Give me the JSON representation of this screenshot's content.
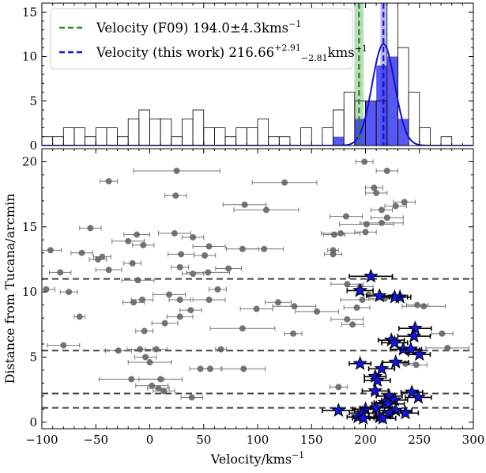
{
  "chart_data": [
    {
      "type": "bar",
      "panel": "top",
      "xlim": [
        -100,
        300
      ],
      "ylim": [
        0,
        16
      ],
      "yticks": [
        0,
        5,
        10,
        15
      ],
      "bin_width": 10,
      "all_bins_left": [
        -100,
        -90,
        -80,
        -70,
        -60,
        -50,
        -40,
        -30,
        -20,
        -10,
        0,
        10,
        20,
        30,
        40,
        50,
        60,
        70,
        80,
        90,
        100,
        110,
        120,
        130,
        140,
        150,
        160,
        170,
        180,
        190,
        200,
        210,
        220,
        230,
        240,
        250,
        260,
        270
      ],
      "all_counts": [
        1,
        1,
        2,
        2,
        1,
        2,
        2,
        1,
        3,
        4,
        3,
        3,
        1,
        3,
        4,
        2,
        2,
        1,
        2,
        2,
        3,
        1,
        1,
        0,
        2,
        0,
        2,
        4,
        6,
        5,
        5,
        5,
        16,
        11,
        6,
        2,
        0,
        1
      ],
      "member_bins_left": [
        170,
        190,
        200,
        210,
        220,
        230
      ],
      "member_counts": [
        1,
        3,
        5,
        9,
        10,
        3
      ],
      "gaussian": {
        "mean": 216.66,
        "sigma": 10.5,
        "peak": 11.4
      },
      "vlines": [
        {
          "x": 194.0,
          "band": [
            189.7,
            198.3
          ],
          "color": "#1a8c1a",
          "style": "dashed"
        },
        {
          "x": 216.66,
          "band": [
            213.85,
            219.57
          ],
          "color": "#1010d0",
          "style": "dashed"
        }
      ],
      "legend": {
        "placement": "top-left",
        "entries": [
          {
            "prefix": "Velocity (F09) 194.0±4.3kms",
            "sup": "−1",
            "sub": "",
            "suffix": ""
          },
          {
            "prefix": "Velocity (this work) 216.66",
            "sup": "+2.91",
            "sub": "−2.81",
            "suffix": "kms",
            "suffix_sup": "−1"
          }
        ]
      }
    },
    {
      "type": "scatter",
      "panel": "bottom",
      "xlabel": "Velocity/kms",
      "xlabel_sup": "−1",
      "ylabel": "Distance from Tucana/arcmin",
      "xlim": [
        -100,
        300
      ],
      "ylim": [
        -0.5,
        21
      ],
      "xticks": [
        -100,
        -50,
        0,
        50,
        100,
        150,
        200,
        250,
        300
      ],
      "xtick_labels": [
        "−100",
        "−50",
        "0",
        "50",
        "100",
        "150",
        "200",
        "250",
        "300"
      ],
      "yticks": [
        0,
        5,
        10,
        15,
        20
      ],
      "hlines": [
        1.1,
        2.2,
        5.5,
        11.0
      ],
      "nonmembers": [
        [
          199,
          20.0,
          8
        ],
        [
          25,
          19.3,
          40
        ],
        [
          220,
          19.3,
          10
        ],
        [
          -38,
          18.5,
          8
        ],
        [
          125,
          18.4,
          30
        ],
        [
          208,
          18.0,
          8
        ],
        [
          210,
          17.6,
          10
        ],
        [
          24,
          17.4,
          10
        ],
        [
          236,
          16.9,
          10
        ],
        [
          228,
          16.6,
          10
        ],
        [
          88,
          16.7,
          20
        ],
        [
          108,
          16.3,
          30
        ],
        [
          215,
          16.3,
          10
        ],
        [
          220,
          15.7,
          15
        ],
        [
          182,
          15.8,
          15
        ],
        [
          215,
          15.3,
          20
        ],
        [
          201,
          15.2,
          25
        ],
        [
          -55,
          14.9,
          10
        ],
        [
          23,
          14.5,
          15
        ],
        [
          177,
          14.5,
          18
        ],
        [
          171,
          14.4,
          10
        ],
        [
          200,
          14.6,
          10
        ],
        [
          -12,
          14.4,
          12
        ],
        [
          40,
          14.2,
          10
        ],
        [
          -20,
          13.9,
          15
        ],
        [
          -6,
          13.6,
          10
        ],
        [
          55,
          13.5,
          15
        ],
        [
          86,
          13.3,
          15
        ],
        [
          106,
          13.3,
          18
        ],
        [
          -92,
          13.2,
          10
        ],
        [
          170,
          13.2,
          5
        ],
        [
          -63,
          13.0,
          10
        ],
        [
          170,
          12.9,
          8
        ],
        [
          29,
          12.9,
          12
        ],
        [
          51,
          12.8,
          10
        ],
        [
          -44,
          12.7,
          8
        ],
        [
          -48,
          12.5,
          8
        ],
        [
          -16,
          12.2,
          8
        ],
        [
          28,
          11.9,
          8
        ],
        [
          73,
          11.8,
          12
        ],
        [
          -38,
          11.7,
          12
        ],
        [
          -83,
          11.5,
          10
        ],
        [
          40,
          11.4,
          10
        ],
        [
          54,
          11.5,
          20
        ],
        [
          -11,
          10.9,
          15
        ],
        [
          195,
          10.4,
          12
        ],
        [
          183,
          10.6,
          15
        ],
        [
          63,
          10.2,
          8
        ],
        [
          -96,
          10.2,
          8
        ],
        [
          -75,
          10.0,
          8
        ],
        [
          18,
          9.8,
          15
        ],
        [
          28,
          9.4,
          10
        ],
        [
          55,
          9.4,
          15
        ],
        [
          -7,
          9.4,
          10
        ],
        [
          203,
          9.8,
          12
        ],
        [
          197,
          9.4,
          20
        ],
        [
          -15,
          9.2,
          10
        ],
        [
          218,
          9.5,
          15
        ],
        [
          119,
          9.2,
          12
        ],
        [
          248,
          9.0,
          10
        ],
        [
          254,
          8.9,
          20
        ],
        [
          134,
          8.9,
          20
        ],
        [
          192,
          8.8,
          12
        ],
        [
          99,
          8.7,
          15
        ],
        [
          38,
          8.6,
          10
        ],
        [
          -65,
          8.1,
          5
        ],
        [
          28,
          8.1,
          12
        ],
        [
          14,
          7.6,
          12
        ],
        [
          183,
          7.9,
          15
        ],
        [
          188,
          7.5,
          10
        ],
        [
          155,
          8.5,
          20
        ],
        [
          86,
          7.2,
          30
        ],
        [
          -5,
          7.0,
          8
        ],
        [
          133,
          6.8,
          8
        ],
        [
          271,
          6.8,
          10
        ],
        [
          -80,
          5.9,
          15
        ],
        [
          -29,
          5.5,
          12
        ],
        [
          -9,
          5.6,
          12
        ],
        [
          6,
          5.6,
          10
        ],
        [
          66,
          5.6,
          5
        ],
        [
          276,
          5.7,
          20
        ],
        [
          -4,
          5.0,
          10
        ],
        [
          0,
          4.6,
          20
        ],
        [
          247,
          4.4,
          10
        ],
        [
          237,
          4.5,
          8
        ],
        [
          47,
          4.1,
          10
        ],
        [
          56,
          4.1,
          10
        ],
        [
          87,
          4.1,
          20
        ],
        [
          -17,
          3.3,
          30
        ],
        [
          10,
          3.3,
          20
        ],
        [
          2,
          2.8,
          15
        ],
        [
          8,
          2.6,
          10
        ],
        [
          13,
          2.4,
          10
        ],
        [
          39,
          1.9,
          10
        ],
        [
          175,
          2.7,
          8
        ]
      ],
      "members": [
        [
          205,
          11.2,
          20
        ],
        [
          232,
          9.6,
          10
        ],
        [
          227,
          9.6,
          12
        ],
        [
          195,
          10.1,
          12
        ],
        [
          213,
          9.7,
          12
        ],
        [
          246,
          7.2,
          15
        ],
        [
          245,
          6.6,
          15
        ],
        [
          224,
          6.3,
          12
        ],
        [
          227,
          6.1,
          12
        ],
        [
          235,
          5.6,
          12
        ],
        [
          242,
          5.6,
          10
        ],
        [
          250,
          5.2,
          10
        ],
        [
          195,
          4.5,
          10
        ],
        [
          228,
          4.6,
          12
        ],
        [
          215,
          4.1,
          12
        ],
        [
          209,
          3.5,
          10
        ],
        [
          211,
          3.2,
          12
        ],
        [
          209,
          2.4,
          12
        ],
        [
          243,
          2.3,
          10
        ],
        [
          249,
          1.9,
          12
        ],
        [
          222,
          2.0,
          12
        ],
        [
          227,
          1.7,
          12
        ],
        [
          218,
          1.5,
          10
        ],
        [
          221,
          1.4,
          15
        ],
        [
          200,
          1.0,
          12
        ],
        [
          210,
          1.1,
          15
        ],
        [
          228,
          0.9,
          15
        ],
        [
          175,
          0.9,
          15
        ],
        [
          197,
          0.7,
          12
        ],
        [
          193,
          0.4,
          10
        ],
        [
          222,
          0.7,
          12
        ],
        [
          237,
          0.7,
          12
        ],
        [
          213,
          0.4,
          10
        ],
        [
          216,
          0.3,
          12
        ],
        [
          198,
          0.3,
          10
        ]
      ]
    }
  ]
}
